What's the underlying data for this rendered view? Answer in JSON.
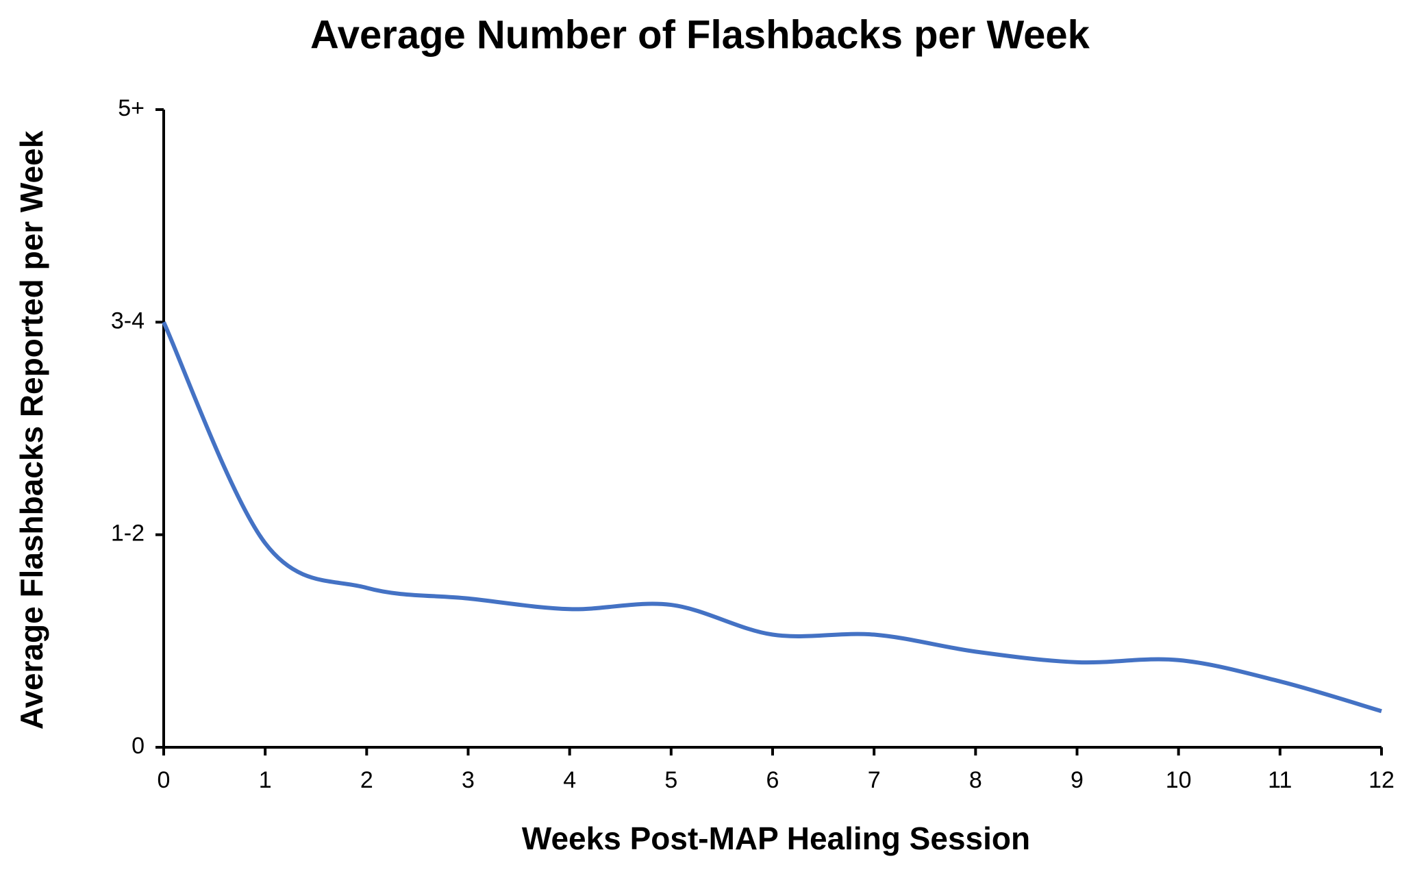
{
  "chart_data": {
    "type": "line",
    "title": "Average Number of Flashbacks per Week",
    "x_label": "Weeks Post-MAP Healing Session",
    "y_label": "Average Flashbacks Reported per Week",
    "x": [
      0,
      1,
      2,
      3,
      4,
      5,
      6,
      7,
      8,
      9,
      10,
      11,
      12
    ],
    "series": [
      {
        "name": "Average flashbacks",
        "color": "#4472c4",
        "values": [
          2.0,
          0.96,
          0.75,
          0.7,
          0.65,
          0.67,
          0.53,
          0.53,
          0.45,
          0.4,
          0.41,
          0.31,
          0.17
        ]
      }
    ],
    "xlim": [
      0,
      12
    ],
    "xticks": [
      0,
      1,
      2,
      3,
      4,
      5,
      6,
      7,
      8,
      9,
      10,
      11,
      12
    ],
    "ylim": [
      0,
      3
    ],
    "yticks": [
      0,
      {
        "value": 1,
        "label": "1-2"
      },
      {
        "value": 2,
        "label": "3-4"
      },
      {
        "value": 3,
        "label": "5+"
      }
    ],
    "smooth": true
  }
}
